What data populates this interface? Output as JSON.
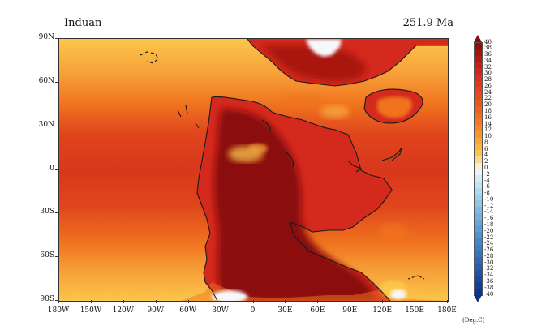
{
  "header": {
    "stage": "Induan",
    "age": "251.9 Ma"
  },
  "axes": {
    "lat_labels": [
      "90N",
      "60N",
      "30N",
      "0",
      "30S",
      "60S",
      "90S"
    ],
    "lon_labels": [
      "180W",
      "150W",
      "120W",
      "90W",
      "60W",
      "30W",
      "0",
      "30E",
      "60E",
      "90E",
      "120E",
      "150E",
      "180E"
    ]
  },
  "colorbar": {
    "unit": "(Deg.C)",
    "ticks": [
      "40",
      "38",
      "36",
      "34",
      "32",
      "30",
      "28",
      "26",
      "24",
      "22",
      "20",
      "18",
      "16",
      "14",
      "12",
      "10",
      "8",
      "6",
      "4",
      "2",
      "0",
      "-2",
      "-4",
      "-6",
      "-8",
      "-10",
      "-12",
      "-14",
      "-16",
      "-18",
      "-20",
      "-22",
      "-24",
      "-26",
      "-28",
      "-30",
      "-32",
      "-34",
      "-36",
      "-38",
      "-40"
    ],
    "colors": {
      "hot": "#8b0a0a",
      "red": "#d4291d",
      "orange": "#f0731f",
      "yellow": "#fbc64a",
      "white": "#f7f8fb",
      "lightblue": "#9fd5ee",
      "blue": "#3f83c7",
      "navy": "#0a2f8b"
    }
  }
}
